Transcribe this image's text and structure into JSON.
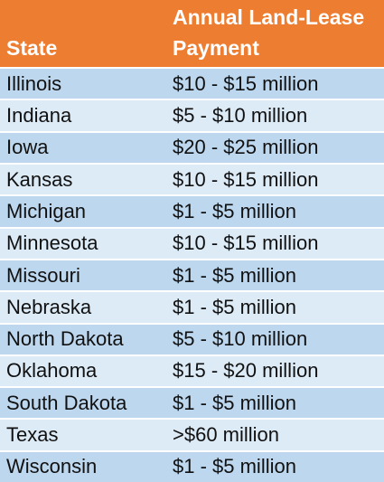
{
  "header": {
    "state": "State",
    "payment": "Annual Land-Lease\nPayment"
  },
  "rows": [
    {
      "state": "Illinois",
      "payment": "$10 - $15 million"
    },
    {
      "state": "Indiana",
      "payment": "$5 - $10 million"
    },
    {
      "state": "Iowa",
      "payment": "$20 - $25 million"
    },
    {
      "state": "Kansas",
      "payment": "$10 - $15 million"
    },
    {
      "state": "Michigan",
      "payment": "$1 - $5 million"
    },
    {
      "state": "Minnesota",
      "payment": "$10 - $15 million"
    },
    {
      "state": "Missouri",
      "payment": "$1 - $5 million"
    },
    {
      "state": "Nebraska",
      "payment": "$1 - $5 million"
    },
    {
      "state": "North Dakota",
      "payment": "$5 - $10 million"
    },
    {
      "state": "Oklahoma",
      "payment": "$15 - $20 million"
    },
    {
      "state": "South Dakota",
      "payment": "$1 - $5 million"
    },
    {
      "state": "Texas",
      "payment": ">$60 million"
    },
    {
      "state": "Wisconsin",
      "payment": "$1 - $5 million"
    }
  ],
  "colors": {
    "header_bg": "#ed7d31",
    "row_dark": "#bdd7ee",
    "row_light": "#ddebf7"
  }
}
